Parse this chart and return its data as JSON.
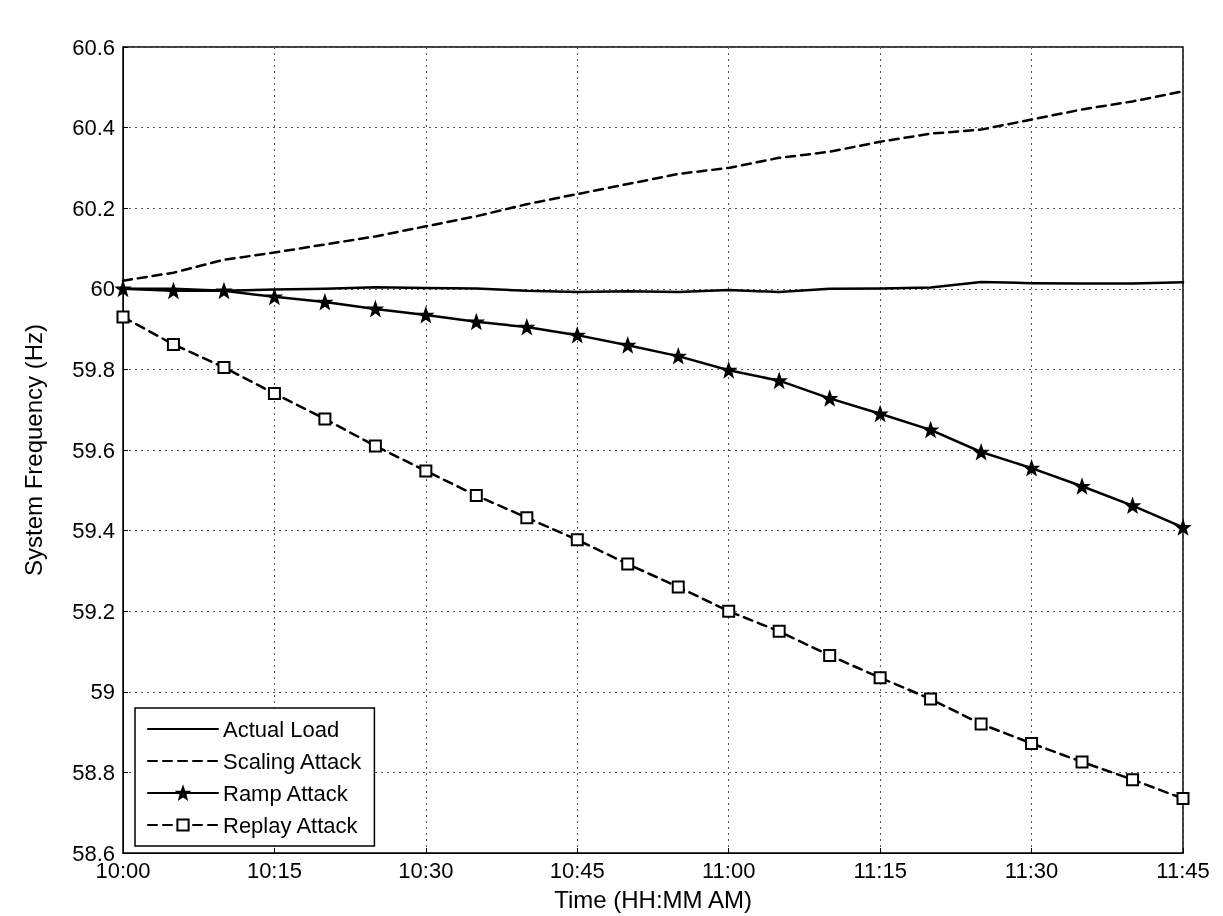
{
  "chart_data": {
    "type": "line",
    "xlabel": "Time (HH:MM AM)",
    "ylabel": "System Frequency (Hz)",
    "x": [
      10,
      10.0833,
      10.1667,
      10.25,
      10.3333,
      10.4167,
      10.5,
      10.5833,
      10.6667,
      10.75,
      10.8333,
      10.9167,
      11,
      11.0833,
      11.1667,
      11.25,
      11.3333,
      11.4167,
      11.5,
      11.5833,
      11.6667,
      11.75
    ],
    "series": [
      {
        "name": "Actual Load",
        "color": "#000000",
        "marker": "none",
        "line_style": "solid",
        "values": [
          60.0,
          60.0,
          59.995,
          59.998,
          60.0,
          60.004,
          60.002,
          60.001,
          59.995,
          59.992,
          59.994,
          59.992,
          59.997,
          59.992,
          60.0,
          60.001,
          60.003,
          60.017,
          60.014,
          60.013,
          60.013,
          60.016
        ]
      },
      {
        "name": "Scaling Attack",
        "color": "#000000",
        "marker": "none",
        "line_style": "dashed",
        "values": [
          60.02,
          60.04,
          60.072,
          60.09,
          60.11,
          60.13,
          60.155,
          60.18,
          60.21,
          60.235,
          60.26,
          60.285,
          60.3,
          60.325,
          60.34,
          60.365,
          60.385,
          60.395,
          60.42,
          60.445,
          60.465,
          60.49
        ]
      },
      {
        "name": "Ramp Attack",
        "color": "#000000",
        "marker": "star",
        "line_style": "solid",
        "values": [
          60.0,
          59.995,
          59.995,
          59.98,
          59.967,
          59.95,
          59.935,
          59.918,
          59.905,
          59.885,
          59.86,
          59.833,
          59.798,
          59.772,
          59.728,
          59.69,
          59.65,
          59.595,
          59.555,
          59.51,
          59.462,
          59.408
        ]
      },
      {
        "name": "Replay Attack",
        "color": "#000000",
        "marker": "square",
        "line_style": "dashed",
        "values": [
          59.93,
          59.862,
          59.805,
          59.74,
          59.677,
          59.61,
          59.548,
          59.487,
          59.432,
          59.377,
          59.317,
          59.26,
          59.2,
          59.15,
          59.09,
          59.035,
          58.982,
          58.92,
          58.872,
          58.826,
          58.782,
          58.735
        ]
      }
    ],
    "xlim": [
      10,
      11.75
    ],
    "xticks": [
      {
        "value": 10,
        "label": "10:00"
      },
      {
        "value": 10.25,
        "label": "10:15"
      },
      {
        "value": 10.5,
        "label": "10:30"
      },
      {
        "value": 10.75,
        "label": "10:45"
      },
      {
        "value": 11,
        "label": "11:00"
      },
      {
        "value": 11.25,
        "label": "11:15"
      },
      {
        "value": 11.5,
        "label": "11:30"
      },
      {
        "value": 11.75,
        "label": "11:45"
      }
    ],
    "ylim": [
      58.6,
      60.6
    ],
    "yticks": [
      {
        "value": 58.6,
        "label": "58.6"
      },
      {
        "value": 58.8,
        "label": "58.8"
      },
      {
        "value": 59,
        "label": "59"
      },
      {
        "value": 59.2,
        "label": "59.2"
      },
      {
        "value": 59.4,
        "label": "59.4"
      },
      {
        "value": 59.6,
        "label": "59.6"
      },
      {
        "value": 59.8,
        "label": "59.8"
      },
      {
        "value": 60,
        "label": "60"
      },
      {
        "value": 60.2,
        "label": "60.2"
      },
      {
        "value": 60.4,
        "label": "60.4"
      },
      {
        "value": 60.6,
        "label": "60.6"
      }
    ],
    "grid": true,
    "legend": "bottom left"
  }
}
